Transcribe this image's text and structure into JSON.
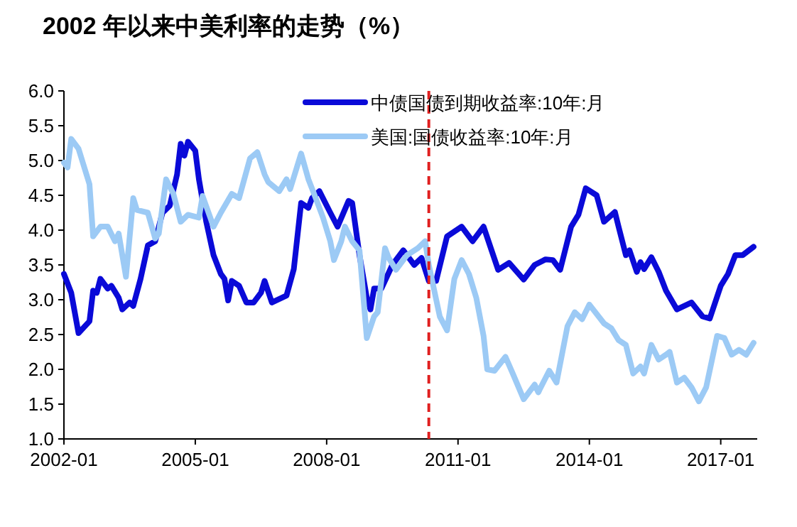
{
  "chart_data": {
    "type": "line",
    "title": "2002 年以来中美利率的走势（%）",
    "xlim": [
      "2002-01",
      "2017-11"
    ],
    "xticks": [
      "2002-01",
      "2005-01",
      "2008-01",
      "2011-01",
      "2014-01",
      "2017-01"
    ],
    "ylim": [
      1,
      6
    ],
    "yticks": [
      {
        "value": 1,
        "label": "1.0"
      },
      {
        "value": 1.5,
        "label": "1.5"
      },
      {
        "value": 2,
        "label": "2.0"
      },
      {
        "value": 2.5,
        "label": "2.5"
      },
      {
        "value": 3,
        "label": "3.0"
      },
      {
        "value": 3.5,
        "label": "3.5"
      },
      {
        "value": 4,
        "label": "4.0"
      },
      {
        "value": 4.5,
        "label": "4.5"
      },
      {
        "value": 5,
        "label": "5.0"
      },
      {
        "value": 5.5,
        "label": "5.5"
      },
      {
        "value": 6,
        "label": "6.0"
      }
    ],
    "grid": false,
    "legend": "top right",
    "marker": "none",
    "line_style": "solid",
    "ref_lines": [
      {
        "axis": "x",
        "value": "2010-05",
        "color": "#e02020",
        "line_style": "dashed"
      }
    ],
    "series": [
      {
        "name": "中债国债到期收益率:10年:月",
        "color": "#0a0ad8",
        "x": [
          "2002-01",
          "2002-03",
          "2002-05",
          "2002-08",
          "2002-09",
          "2002-10",
          "2002-11",
          "2003-01",
          "2003-02",
          "2003-04",
          "2003-05",
          "2003-07",
          "2003-08",
          "2003-10",
          "2003-12",
          "2004-02",
          "2004-04",
          "2004-06",
          "2004-08",
          "2004-09",
          "2004-10",
          "2004-11",
          "2005-01",
          "2005-02",
          "2005-04",
          "2005-06",
          "2005-08",
          "2005-09",
          "2005-10",
          "2005-11",
          "2006-01",
          "2006-03",
          "2006-05",
          "2006-07",
          "2006-08",
          "2006-10",
          "2007-02",
          "2007-04",
          "2007-06",
          "2007-08",
          "2007-09",
          "2007-11",
          "2008-02",
          "2008-04",
          "2008-07",
          "2008-08",
          "2008-10",
          "2008-12",
          "2009-01",
          "2009-02",
          "2009-04",
          "2009-07",
          "2009-10",
          "2010-01",
          "2010-03",
          "2010-05",
          "2010-07",
          "2010-10",
          "2011-02",
          "2011-04",
          "2011-05",
          "2011-08",
          "2011-12",
          "2012-03",
          "2012-07",
          "2012-10",
          "2013-01",
          "2013-03",
          "2013-05",
          "2013-08",
          "2013-10",
          "2013-12",
          "2014-03",
          "2014-05",
          "2014-08",
          "2014-09",
          "2014-11",
          "2014-12",
          "2015-02",
          "2015-03",
          "2015-04",
          "2015-06",
          "2015-08",
          "2015-10",
          "2016-01",
          "2016-05",
          "2016-08",
          "2016-10",
          "2017-01",
          "2017-03",
          "2017-05",
          "2017-07",
          "2017-10"
        ],
        "values": [
          3.37,
          3.1,
          2.52,
          2.69,
          3.13,
          3.1,
          3.3,
          3.16,
          3.2,
          3.03,
          2.86,
          2.96,
          2.91,
          3.3,
          3.78,
          3.84,
          4.25,
          4.35,
          4.8,
          5.24,
          5.07,
          5.27,
          5.14,
          4.73,
          4.12,
          3.64,
          3.37,
          3.3,
          2.99,
          3.27,
          3.2,
          2.96,
          2.96,
          3.1,
          3.27,
          2.96,
          3.06,
          3.44,
          4.39,
          4.32,
          4.46,
          4.56,
          4.25,
          4.05,
          4.42,
          4.39,
          3.64,
          3.03,
          2.86,
          3.16,
          3.16,
          3.5,
          3.71,
          3.5,
          3.6,
          3.27,
          3.27,
          3.91,
          4.05,
          3.91,
          3.84,
          4.05,
          3.43,
          3.53,
          3.29,
          3.5,
          3.58,
          3.57,
          3.43,
          4.05,
          4.22,
          4.6,
          4.5,
          4.12,
          4.26,
          4.05,
          3.64,
          3.71,
          3.4,
          3.54,
          3.44,
          3.61,
          3.4,
          3.13,
          2.86,
          2.96,
          2.76,
          2.73,
          3.2,
          3.37,
          3.64,
          3.64,
          3.76
        ]
      },
      {
        "name": "美国:国债收益率:10年:月",
        "color": "#9ccaf5",
        "x": [
          "2002-01",
          "2002-02",
          "2002-03",
          "2002-05",
          "2002-08",
          "2002-09",
          "2002-11",
          "2003-01",
          "2003-03",
          "2003-04",
          "2003-06",
          "2003-08",
          "2003-09",
          "2003-12",
          "2004-02",
          "2004-03",
          "2004-05",
          "2004-07",
          "2004-09",
          "2004-11",
          "2005-02",
          "2005-03",
          "2005-06",
          "2005-08",
          "2005-11",
          "2006-01",
          "2006-04",
          "2006-06",
          "2006-08",
          "2006-09",
          "2006-12",
          "2007-02",
          "2007-03",
          "2007-06",
          "2007-08",
          "2007-10",
          "2007-12",
          "2008-02",
          "2008-03",
          "2008-05",
          "2008-06",
          "2008-08",
          "2008-10",
          "2008-12",
          "2009-02",
          "2009-03",
          "2009-05",
          "2009-06",
          "2009-08",
          "2009-11",
          "2010-02",
          "2010-04",
          "2010-05",
          "2010-08",
          "2010-10",
          "2010-12",
          "2011-02",
          "2011-04",
          "2011-06",
          "2011-08",
          "2011-09",
          "2011-11",
          "2012-02",
          "2012-04",
          "2012-07",
          "2012-10",
          "2012-11",
          "2013-02",
          "2013-04",
          "2013-07",
          "2013-09",
          "2013-11",
          "2014-01",
          "2014-05",
          "2014-07",
          "2014-09",
          "2014-11",
          "2015-01",
          "2015-03",
          "2015-04",
          "2015-06",
          "2015-08",
          "2015-10",
          "2015-11",
          "2016-01",
          "2016-03",
          "2016-05",
          "2016-07",
          "2016-09",
          "2016-12",
          "2017-02",
          "2017-04",
          "2017-06",
          "2017-08",
          "2017-10"
        ],
        "values": [
          4.97,
          4.9,
          5.31,
          5.17,
          4.66,
          3.91,
          4.05,
          4.05,
          3.84,
          3.95,
          3.33,
          4.46,
          4.29,
          4.25,
          3.88,
          3.95,
          4.73,
          4.52,
          4.12,
          4.22,
          4.18,
          4.49,
          4.05,
          4.25,
          4.52,
          4.46,
          5.03,
          5.12,
          4.8,
          4.69,
          4.56,
          4.73,
          4.59,
          5.1,
          4.73,
          4.46,
          4.18,
          3.84,
          3.57,
          3.84,
          4.05,
          3.84,
          3.71,
          2.45,
          2.76,
          2.82,
          3.74,
          3.6,
          3.43,
          3.64,
          3.74,
          3.84,
          3.5,
          2.76,
          2.56,
          3.3,
          3.57,
          3.37,
          3.03,
          2.48,
          2.0,
          1.98,
          2.18,
          1.94,
          1.57,
          1.78,
          1.67,
          1.98,
          1.81,
          2.62,
          2.82,
          2.72,
          2.93,
          2.66,
          2.59,
          2.42,
          2.35,
          1.94,
          2.04,
          1.94,
          2.35,
          2.14,
          2.21,
          2.25,
          1.81,
          1.88,
          1.74,
          1.54,
          1.74,
          2.48,
          2.45,
          2.21,
          2.28,
          2.21,
          2.38
        ]
      }
    ]
  }
}
